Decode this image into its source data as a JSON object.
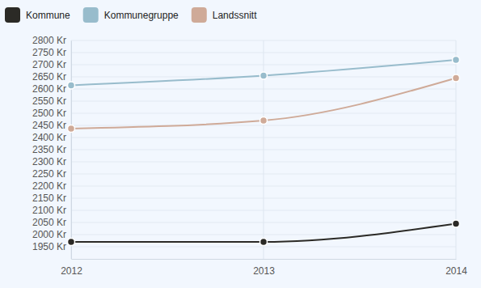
{
  "chart_data": {
    "type": "line",
    "categories": [
      "2012",
      "2013",
      "2014"
    ],
    "series": [
      {
        "name": "Kommune",
        "color": "#2b2a26",
        "values": [
          1970,
          1970,
          2045
        ]
      },
      {
        "name": "Kommunegruppe",
        "color": "#98bccc",
        "values": [
          2615,
          2655,
          2720
        ]
      },
      {
        "name": "Landssnitt",
        "color": "#cfaa98",
        "values": [
          2437,
          2470,
          2645
        ]
      }
    ],
    "ylim": [
      1900,
      2800
    ],
    "yticks": [
      {
        "value": 1950,
        "label": "1950 Kr"
      },
      {
        "value": 2000,
        "label": "2000 Kr"
      },
      {
        "value": 2050,
        "label": "2050 Kr"
      },
      {
        "value": 2100,
        "label": "2100 Kr"
      },
      {
        "value": 2150,
        "label": "2150 Kr"
      },
      {
        "value": 2200,
        "label": "2200 Kr"
      },
      {
        "value": 2250,
        "label": "2250 Kr"
      },
      {
        "value": 2300,
        "label": "2300 Kr"
      },
      {
        "value": 2350,
        "label": "2350 Kr"
      },
      {
        "value": 2400,
        "label": "2400 Kr"
      },
      {
        "value": 2450,
        "label": "2450 Kr"
      },
      {
        "value": 2500,
        "label": "2500 Kr"
      },
      {
        "value": 2550,
        "label": "2550 Kr"
      },
      {
        "value": 2600,
        "label": "2600 Kr"
      },
      {
        "value": 2650,
        "label": "2650 Kr"
      },
      {
        "value": 2700,
        "label": "2700 Kr"
      },
      {
        "value": 2750,
        "label": "2750 Kr"
      },
      {
        "value": 2800,
        "label": "2800 Kr"
      }
    ],
    "grid": true,
    "legend": "top-left",
    "marker": "circle"
  }
}
